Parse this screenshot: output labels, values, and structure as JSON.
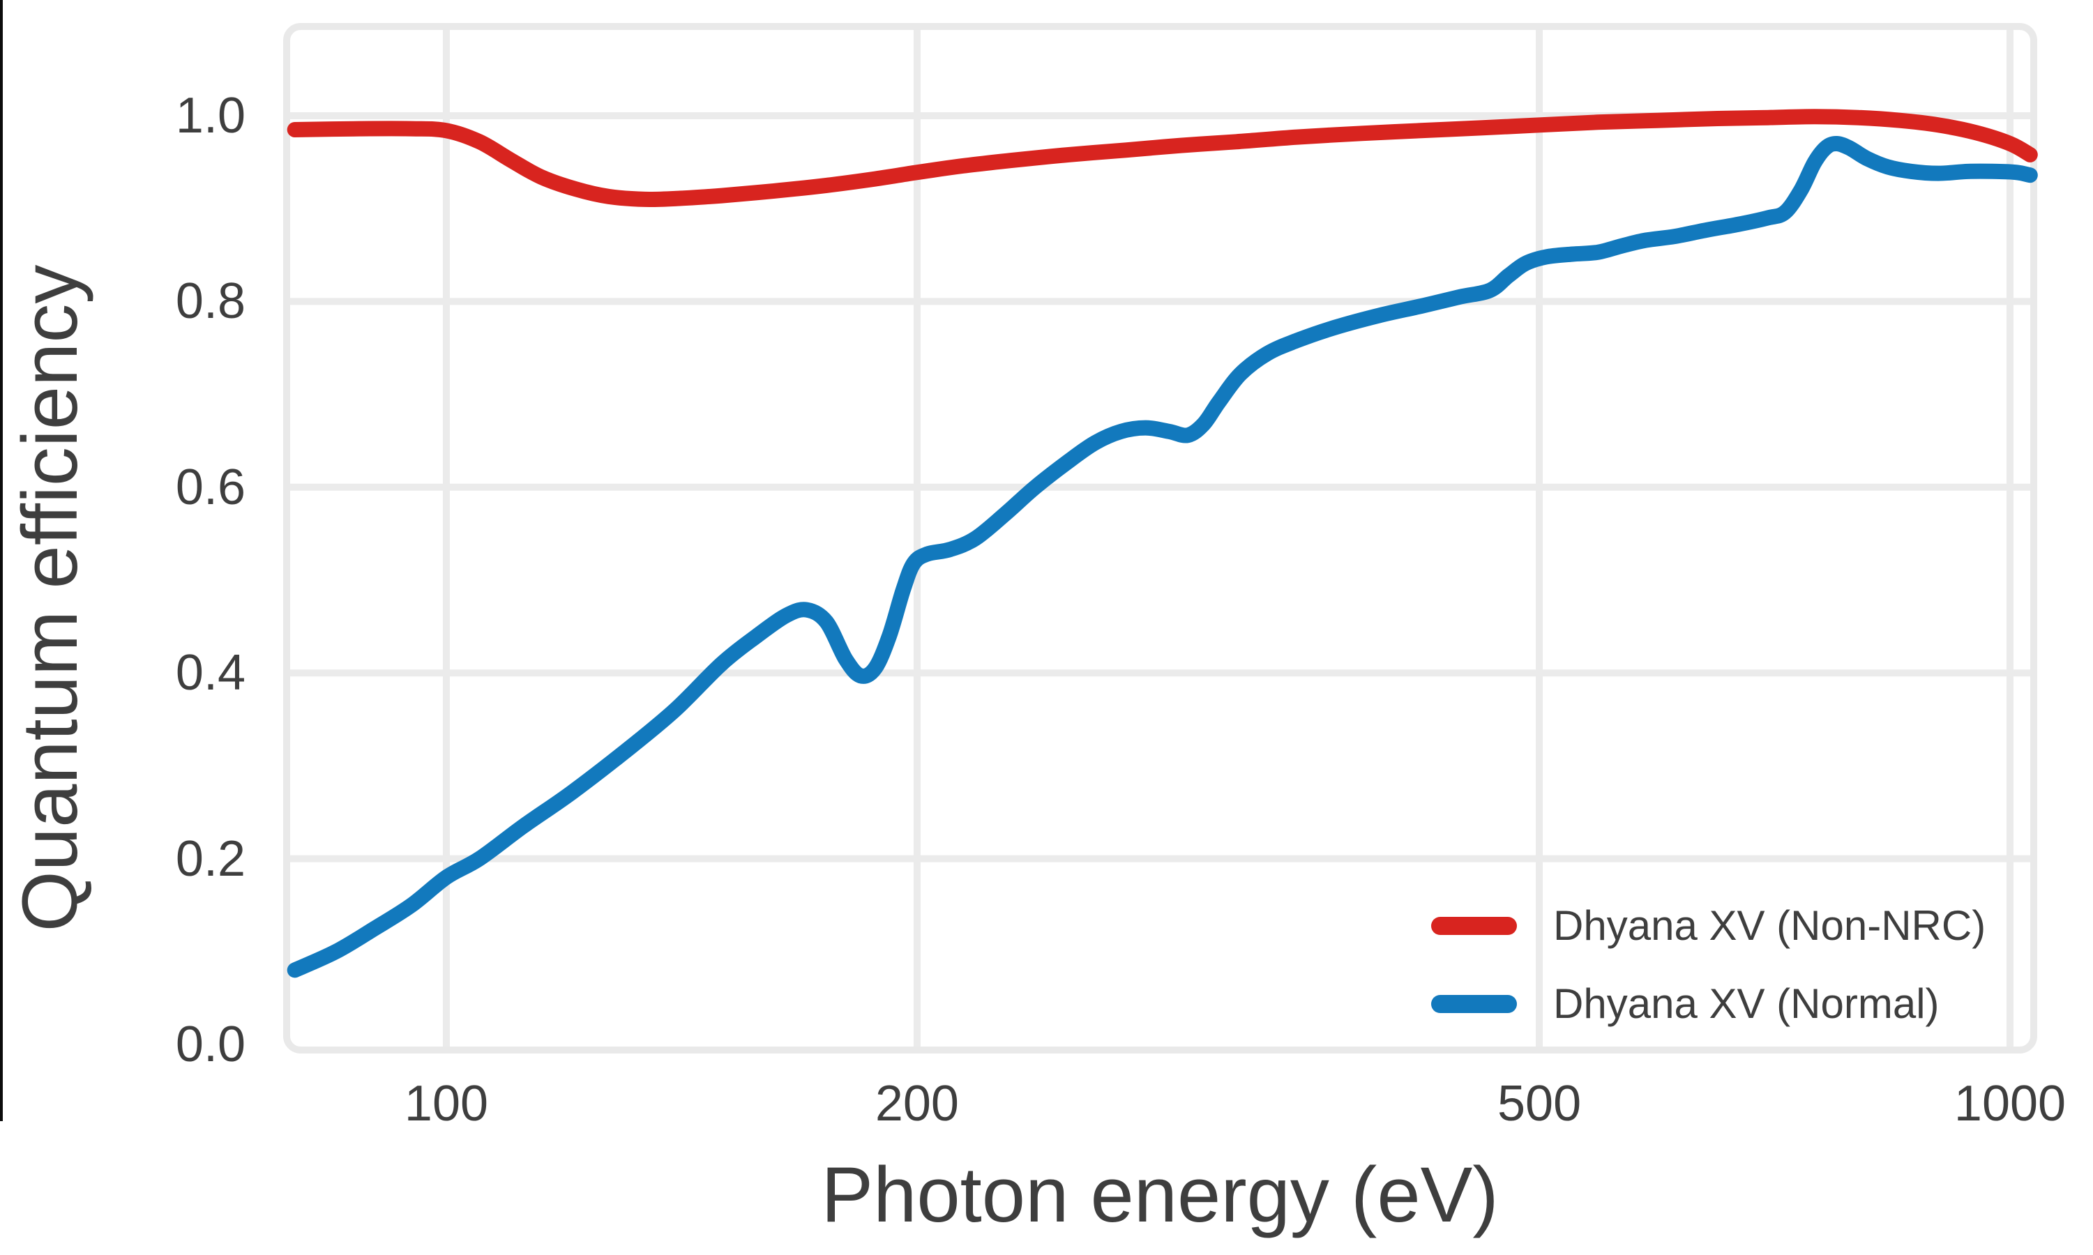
{
  "chart_data": {
    "type": "line",
    "title": "",
    "xlabel": "Photon energy (eV)",
    "ylabel": "Quantum efficiency",
    "xscale": "log",
    "xlim": [
      79,
      1036
    ],
    "ylim": [
      -0.02,
      1.1
    ],
    "grid": true,
    "legend_position": "lower right",
    "x_ticks": {
      "labels": [
        "100",
        "200",
        "500",
        "1000"
      ],
      "values": [
        100,
        200,
        500,
        1000
      ]
    },
    "y_ticks": {
      "labels": [
        "0.0",
        "0.2",
        "0.4",
        "0.6",
        "0.8",
        "1.0"
      ],
      "values": [
        0,
        0.2,
        0.4,
        0.6,
        0.8,
        1.0
      ]
    },
    "series": [
      {
        "name": "Dhyana XV (Non-NRC)",
        "color": "#d8241f",
        "points": [
          [
            80,
            0.985
          ],
          [
            88,
            0.986
          ],
          [
            95,
            0.986
          ],
          [
            100,
            0.984
          ],
          [
            105,
            0.972
          ],
          [
            110,
            0.952
          ],
          [
            115,
            0.934
          ],
          [
            121,
            0.921
          ],
          [
            127,
            0.913
          ],
          [
            134,
            0.91
          ],
          [
            141,
            0.911
          ],
          [
            150,
            0.914
          ],
          [
            162,
            0.919
          ],
          [
            175,
            0.925
          ],
          [
            188,
            0.932
          ],
          [
            200,
            0.939
          ],
          [
            214,
            0.946
          ],
          [
            230,
            0.952
          ],
          [
            250,
            0.958
          ],
          [
            272,
            0.963
          ],
          [
            295,
            0.968
          ],
          [
            320,
            0.972
          ],
          [
            350,
            0.977
          ],
          [
            385,
            0.981
          ],
          [
            420,
            0.984
          ],
          [
            460,
            0.987
          ],
          [
            500,
            0.99
          ],
          [
            545,
            0.993
          ],
          [
            595,
            0.995
          ],
          [
            650,
            0.997
          ],
          [
            700,
            0.998
          ],
          [
            750,
            0.999
          ],
          [
            800,
            0.998
          ],
          [
            850,
            0.995
          ],
          [
            900,
            0.99
          ],
          [
            950,
            0.982
          ],
          [
            1000,
            0.97
          ],
          [
            1030,
            0.958
          ]
        ]
      },
      {
        "name": "Dhyana XV (Normal)",
        "color": "#1279bd",
        "points": [
          [
            80,
            0.08
          ],
          [
            85,
            0.1
          ],
          [
            90,
            0.125
          ],
          [
            95,
            0.15
          ],
          [
            100,
            0.18
          ],
          [
            105,
            0.2
          ],
          [
            112,
            0.235
          ],
          [
            120,
            0.27
          ],
          [
            130,
            0.315
          ],
          [
            140,
            0.36
          ],
          [
            150,
            0.41
          ],
          [
            158,
            0.44
          ],
          [
            165,
            0.462
          ],
          [
            170,
            0.468
          ],
          [
            175,
            0.455
          ],
          [
            180,
            0.415
          ],
          [
            184,
            0.397
          ],
          [
            188,
            0.405
          ],
          [
            192,
            0.44
          ],
          [
            196,
            0.49
          ],
          [
            199,
            0.518
          ],
          [
            203,
            0.528
          ],
          [
            210,
            0.533
          ],
          [
            218,
            0.545
          ],
          [
            228,
            0.572
          ],
          [
            238,
            0.6
          ],
          [
            250,
            0.628
          ],
          [
            260,
            0.648
          ],
          [
            270,
            0.66
          ],
          [
            280,
            0.664
          ],
          [
            290,
            0.66
          ],
          [
            298,
            0.656
          ],
          [
            305,
            0.668
          ],
          [
            312,
            0.692
          ],
          [
            322,
            0.722
          ],
          [
            335,
            0.744
          ],
          [
            350,
            0.758
          ],
          [
            370,
            0.772
          ],
          [
            395,
            0.785
          ],
          [
            420,
            0.795
          ],
          [
            445,
            0.805
          ],
          [
            465,
            0.812
          ],
          [
            478,
            0.828
          ],
          [
            490,
            0.841
          ],
          [
            505,
            0.848
          ],
          [
            525,
            0.851
          ],
          [
            545,
            0.853
          ],
          [
            565,
            0.86
          ],
          [
            585,
            0.866
          ],
          [
            610,
            0.87
          ],
          [
            640,
            0.877
          ],
          [
            670,
            0.883
          ],
          [
            700,
            0.89
          ],
          [
            718,
            0.896
          ],
          [
            735,
            0.92
          ],
          [
            750,
            0.95
          ],
          [
            763,
            0.966
          ],
          [
            775,
            0.97
          ],
          [
            790,
            0.965
          ],
          [
            810,
            0.954
          ],
          [
            835,
            0.945
          ],
          [
            865,
            0.94
          ],
          [
            900,
            0.938
          ],
          [
            940,
            0.94
          ],
          [
            980,
            0.94
          ],
          [
            1010,
            0.939
          ],
          [
            1030,
            0.936
          ]
        ]
      }
    ]
  },
  "colors": {
    "background": "#ffffff",
    "grid": "#ebebeb",
    "frame": "#e9e9e9",
    "text": "#3e3e3e",
    "window_edge": "#0c0c0c"
  }
}
